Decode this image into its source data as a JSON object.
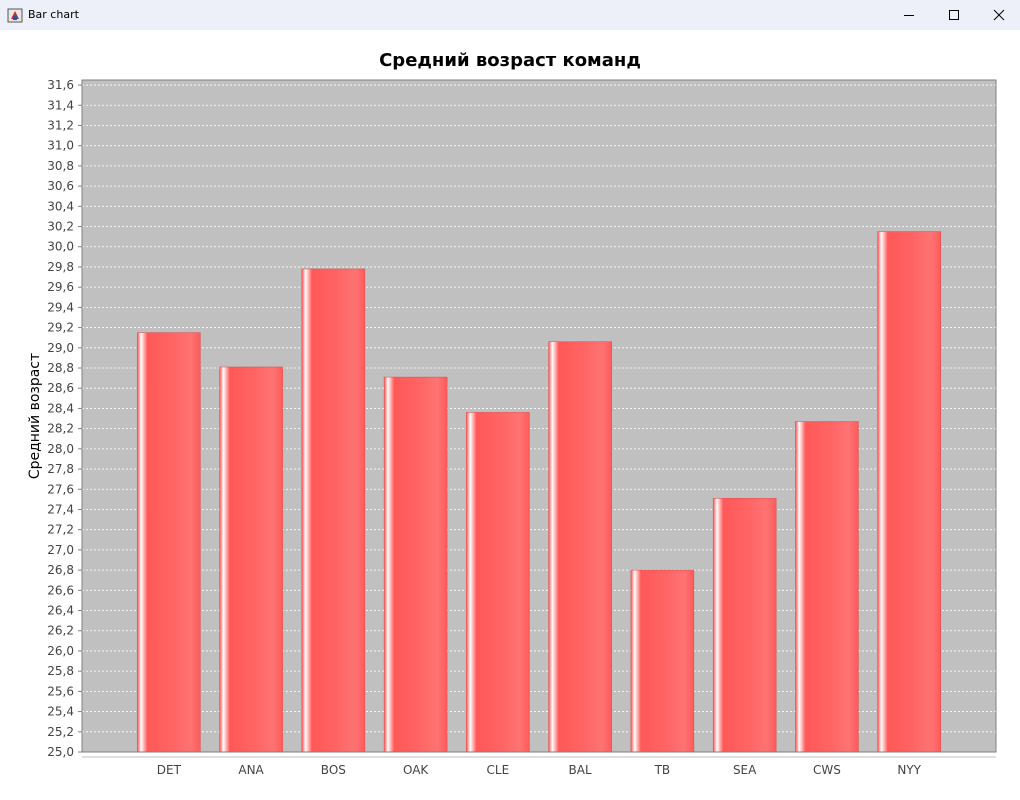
{
  "window": {
    "title": "Bar chart",
    "icon": "java-app-icon"
  },
  "controls": {
    "minimize_icon": "minimize-icon",
    "maximize_icon": "maximize-icon",
    "close_icon": "close-icon"
  },
  "chart_data": {
    "type": "bar",
    "title": "Средний возраст команд",
    "xlabel": "",
    "ylabel": "Средний возраст",
    "categories": [
      "DET",
      "ANA",
      "BOS",
      "OAK",
      "CLE",
      "BAL",
      "TB",
      "SEA",
      "CWS",
      "NYY"
    ],
    "values": [
      29.15,
      28.81,
      29.78,
      28.71,
      28.36,
      29.06,
      26.8,
      27.51,
      28.27,
      30.15
    ],
    "ylim": [
      25.0,
      31.65
    ],
    "ytick_step": 0.2,
    "ytick_labels": [
      "25,0",
      "25,2",
      "25,4",
      "25,6",
      "25,8",
      "26,0",
      "26,2",
      "26,4",
      "26,6",
      "26,8",
      "27,0",
      "27,2",
      "27,4",
      "27,6",
      "27,8",
      "28,0",
      "28,2",
      "28,4",
      "28,6",
      "28,8",
      "29,0",
      "29,2",
      "29,4",
      "29,6",
      "29,8",
      "30,0",
      "30,2",
      "30,4",
      "30,6",
      "30,8",
      "31,0",
      "31,2",
      "31,4",
      "31,6"
    ],
    "grid": true,
    "plot_background": "#c0c0c0",
    "bar_color": "#ff5555",
    "bar_highlight": "#ffffff",
    "legend": "none"
  }
}
